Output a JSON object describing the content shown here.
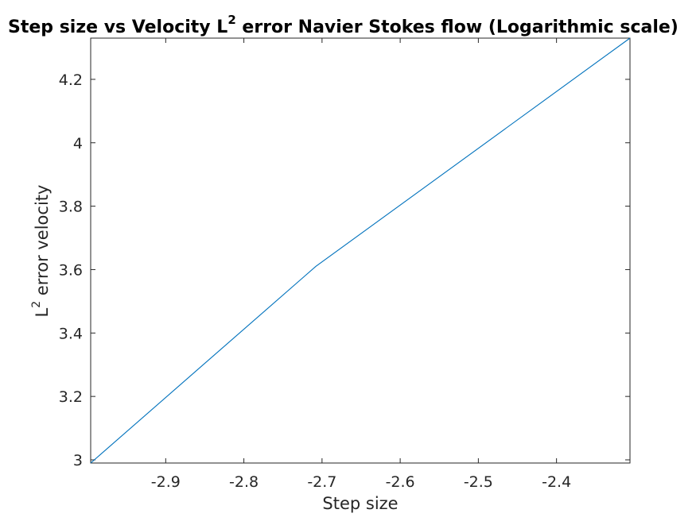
{
  "chart_data": {
    "type": "line",
    "title": {
      "prefix": "Step size vs Velocity L",
      "superscript": "2",
      "suffix": " error Navier Stokes flow (Logarithmic scale)"
    },
    "xlabel": "Step size",
    "ylabel": {
      "prefix": "L",
      "superscript": "2",
      "suffix": " error velocity"
    },
    "xlim": [
      -2.996,
      -2.306
    ],
    "ylim": [
      2.99,
      4.33
    ],
    "xticks": [
      -2.9,
      -2.8,
      -2.7,
      -2.6,
      -2.5,
      -2.4
    ],
    "xtick_labels": [
      "-2.9",
      "-2.8",
      "-2.7",
      "-2.6",
      "-2.5",
      "-2.4"
    ],
    "yticks": [
      3,
      3.2,
      3.4,
      3.6,
      3.8,
      4,
      4.2
    ],
    "ytick_labels": [
      "3",
      "3.2",
      "3.4",
      "3.6",
      "3.8",
      "4",
      "4.2"
    ],
    "grid": false,
    "series": [
      {
        "x": [
          -2.996,
          -2.708,
          -2.306
        ],
        "y": [
          2.99,
          3.61,
          4.33
        ],
        "color": "#0072BD"
      }
    ]
  }
}
